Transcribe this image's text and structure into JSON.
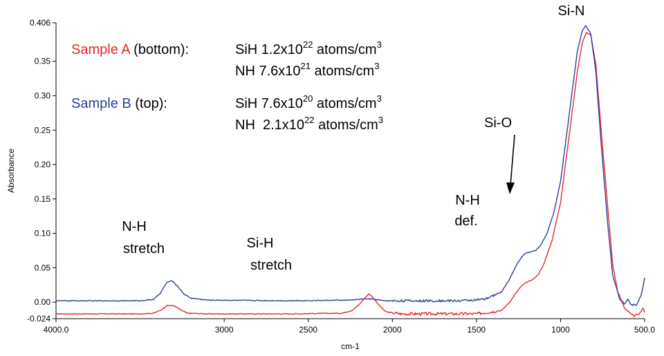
{
  "chart_data": {
    "type": "line",
    "xlabel": "cm-1",
    "ylabel": "Absorbance",
    "xlim": [
      4000.0,
      500.0
    ],
    "ylim": [
      -0.024,
      0.406
    ],
    "x_reversed": true,
    "grid": false,
    "x_ticks": [
      "4000.0",
      "3000",
      "2500",
      "2000",
      "1500",
      "1000",
      "500.0"
    ],
    "x_tick_values": [
      4000,
      3000,
      2500,
      2000,
      1500,
      1000,
      500
    ],
    "y_ticks": [
      "0.406",
      "0.35",
      "0.30",
      "0.25",
      "0.20",
      "0.15",
      "0.10",
      "0.05",
      "0.00",
      "-0.024"
    ],
    "y_tick_values": [
      0.406,
      0.35,
      0.3,
      0.25,
      0.2,
      0.15,
      0.1,
      0.05,
      0.0,
      -0.024
    ],
    "series": [
      {
        "name": "Sample A (bottom)",
        "color": "#e8262b",
        "x": [
          4000,
          3500,
          3420,
          3380,
          3340,
          3300,
          3260,
          3220,
          3100,
          2600,
          2300,
          2240,
          2200,
          2160,
          2140,
          2120,
          2080,
          2040,
          1950,
          1500,
          1350,
          1300,
          1260,
          1230,
          1200,
          1180,
          1160,
          1130,
          1100,
          1050,
          1000,
          950,
          900,
          870,
          845,
          820,
          790,
          760,
          720,
          690,
          660,
          620,
          580,
          560,
          530,
          510,
          500
        ],
        "y": [
          -0.017,
          -0.017,
          -0.016,
          -0.012,
          -0.005,
          -0.005,
          -0.011,
          -0.016,
          -0.017,
          -0.017,
          -0.016,
          -0.012,
          -0.004,
          0.007,
          0.012,
          0.008,
          -0.004,
          -0.014,
          -0.017,
          -0.017,
          -0.012,
          0.001,
          0.015,
          0.024,
          0.029,
          0.031,
          0.034,
          0.041,
          0.055,
          0.09,
          0.145,
          0.24,
          0.335,
          0.378,
          0.392,
          0.388,
          0.345,
          0.255,
          0.14,
          0.055,
          0.015,
          -0.008,
          -0.018,
          -0.02,
          -0.017,
          -0.008,
          -0.015
        ]
      },
      {
        "name": "Sample B (top)",
        "color": "#2b3f97",
        "x": [
          4000,
          3500,
          3420,
          3380,
          3340,
          3310,
          3280,
          3240,
          3200,
          3100,
          2600,
          2250,
          2200,
          2160,
          2100,
          2050,
          1600,
          1450,
          1350,
          1300,
          1260,
          1220,
          1200,
          1180,
          1150,
          1120,
          1080,
          1040,
          1000,
          950,
          900,
          870,
          850,
          820,
          790,
          760,
          720,
          690,
          650,
          620,
          600,
          580,
          550,
          520,
          500
        ],
        "y": [
          0.002,
          0.002,
          0.004,
          0.013,
          0.029,
          0.031,
          0.024,
          0.012,
          0.006,
          0.003,
          0.002,
          0.003,
          0.004,
          0.005,
          0.004,
          0.002,
          0.002,
          0.004,
          0.015,
          0.035,
          0.055,
          0.069,
          0.072,
          0.073,
          0.075,
          0.082,
          0.1,
          0.13,
          0.175,
          0.27,
          0.365,
          0.395,
          0.402,
          0.39,
          0.335,
          0.235,
          0.115,
          0.04,
          0.005,
          -0.002,
          0.005,
          -0.004,
          -0.004,
          0.01,
          0.035
        ]
      }
    ],
    "annotations": {
      "nh_stretch": [
        "N-H",
        "stretch"
      ],
      "sih_stretch": [
        "Si-H",
        "stretch"
      ],
      "nh_def": [
        "N-H",
        "def."
      ],
      "sio": "Si-O",
      "sin": "Si-N"
    },
    "legend_block": {
      "sample_a_label": "Sample A",
      "sample_a_suffix": " (bottom):",
      "sample_a_line1": [
        "SiH 1.2x10",
        "22",
        " atoms/cm",
        "3"
      ],
      "sample_a_line2": [
        "NH 7.6x10",
        "21",
        " atoms/cm",
        "3"
      ],
      "sample_b_label": "Sample B",
      "sample_b_suffix": " (top):",
      "sample_b_line1": [
        "SiH 7.6x10",
        "20",
        " atoms/cm",
        "3"
      ],
      "sample_b_line2": [
        "NH  2.1x10",
        "22",
        " atoms/cm",
        "3"
      ]
    }
  }
}
